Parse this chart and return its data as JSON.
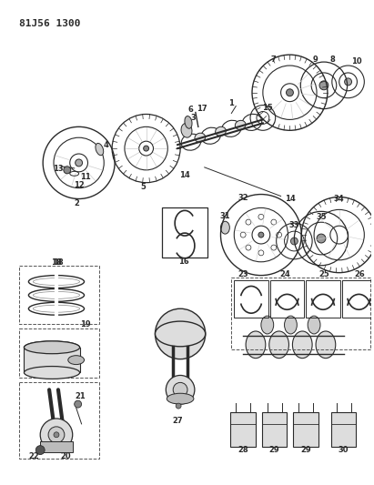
{
  "title": "81J56 1300",
  "bg_color": "#ffffff",
  "line_color": "#2a2a2a",
  "figsize": [
    4.11,
    5.33
  ],
  "dpi": 100
}
